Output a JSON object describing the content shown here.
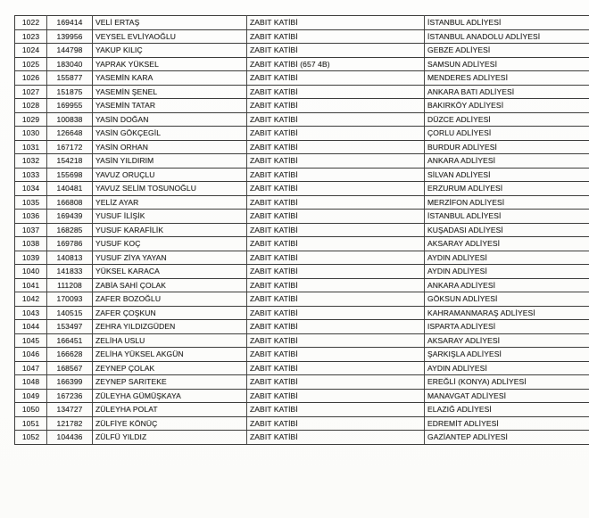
{
  "document": {
    "kind": "scanned-personnel-list"
  },
  "table": {
    "rows": [
      [
        "1022",
        "169414",
        "VELİ ERTAŞ",
        "ZABIT KATİBİ",
        "İSTANBUL ADLİYESİ"
      ],
      [
        "1023",
        "139956",
        "VEYSEL EVLİYAOĞLU",
        "ZABIT KATİBİ",
        "İSTANBUL ANADOLU ADLİYESİ"
      ],
      [
        "1024",
        "144798",
        "YAKUP KILIÇ",
        "ZABIT KATİBİ",
        "GEBZE ADLİYESİ"
      ],
      [
        "1025",
        "183040",
        "YAPRAK YÜKSEL",
        "ZABIT KATİBİ (657 4B)",
        "SAMSUN ADLİYESİ"
      ],
      [
        "1026",
        "155877",
        "YASEMİN KARA",
        "ZABIT KATİBİ",
        "MENDERES ADLİYESİ"
      ],
      [
        "1027",
        "151875",
        "YASEMİN ŞENEL",
        "ZABIT KATİBİ",
        "ANKARA BATI ADLİYESİ"
      ],
      [
        "1028",
        "169955",
        "YASEMİN TATAR",
        "ZABIT KATİBİ",
        "BAKIRKÖY ADLİYESİ"
      ],
      [
        "1029",
        "100838",
        "YASİN DOĞAN",
        "ZABIT KATİBİ",
        "DÜZCE ADLİYESİ"
      ],
      [
        "1030",
        "126648",
        "YASİN GÖKÇEGİL",
        "ZABIT KATİBİ",
        "ÇORLU ADLİYESİ"
      ],
      [
        "1031",
        "167172",
        "YASİN ORHAN",
        "ZABIT KATİBİ",
        "BURDUR ADLİYESİ"
      ],
      [
        "1032",
        "154218",
        "YASİN YILDIRIM",
        "ZABIT KATİBİ",
        "ANKARA ADLİYESİ"
      ],
      [
        "1033",
        "155698",
        "YAVUZ ORUÇLU",
        "ZABIT KATİBİ",
        "SİLVAN ADLİYESİ"
      ],
      [
        "1034",
        "140481",
        "YAVUZ SELİM TOSUNOĞLU",
        "ZABIT KATİBİ",
        "ERZURUM ADLİYESİ"
      ],
      [
        "1035",
        "166808",
        "YELİZ AYAR",
        "ZABIT KATİBİ",
        "MERZİFON ADLİYESİ"
      ],
      [
        "1036",
        "169439",
        "YUSUF İLİŞİK",
        "ZABIT KATİBİ",
        "İSTANBUL ADLİYESİ"
      ],
      [
        "1037",
        "168285",
        "YUSUF KARAFİLİK",
        "ZABIT KATİBİ",
        "KUŞADASI ADLİYESİ"
      ],
      [
        "1038",
        "169786",
        "YUSUF KOÇ",
        "ZABIT KATİBİ",
        "AKSARAY ADLİYESİ"
      ],
      [
        "1039",
        "140813",
        "YUSUF ZİYA YAYAN",
        "ZABIT KATİBİ",
        "AYDIN ADLİYESİ"
      ],
      [
        "1040",
        "141833",
        "YÜKSEL KARACA",
        "ZABIT KATİBİ",
        "AYDIN ADLİYESİ"
      ],
      [
        "1041",
        "111208",
        "ZABİA SAHİ ÇOLAK",
        "ZABIT KATİBİ",
        "ANKARA ADLİYESİ"
      ],
      [
        "1042",
        "170093",
        "ZAFER BOZOĞLU",
        "ZABIT KATİBİ",
        "GÖKSUN ADLİYESİ"
      ],
      [
        "1043",
        "140515",
        "ZAFER ÇOŞKUN",
        "ZABIT KATİBİ",
        "KAHRAMANMARAŞ ADLİYESİ"
      ],
      [
        "1044",
        "153497",
        "ZEHRA YILDIZGÜDEN",
        "ZABIT KATİBİ",
        "ISPARTA ADLİYESİ"
      ],
      [
        "1045",
        "166451",
        "ZELİHA USLU",
        "ZABIT KATİBİ",
        "AKSARAY ADLİYESİ"
      ],
      [
        "1046",
        "166628",
        "ZELİHA YÜKSEL AKGÜN",
        "ZABIT KATİBİ",
        "ŞARKIŞLA ADLİYESİ"
      ],
      [
        "1047",
        "168567",
        "ZEYNEP ÇOLAK",
        "ZABIT KATİBİ",
        "AYDIN ADLİYESİ"
      ],
      [
        "1048",
        "166399",
        "ZEYNEP SARITEKE",
        "ZABIT KATİBİ",
        "EREĞLİ (KONYA) ADLİYESİ"
      ],
      [
        "1049",
        "167236",
        "ZÜLEYHA GÜMÜŞKAYA",
        "ZABIT KATİBİ",
        "MANAVGAT ADLİYESİ"
      ],
      [
        "1050",
        "134727",
        "ZÜLEYHA POLAT",
        "ZABIT KATİBİ",
        "ELAZIĞ ADLİYESİ"
      ],
      [
        "1051",
        "121782",
        "ZÜLFİYE KÖNÜÇ",
        "ZABIT KATİBİ",
        "EDREMİT ADLİYESİ"
      ],
      [
        "1052",
        "104436",
        "ZÜLFÜ YILDIZ",
        "ZABIT KATİBİ",
        "GAZİANTEP ADLİYESİ"
      ]
    ]
  }
}
